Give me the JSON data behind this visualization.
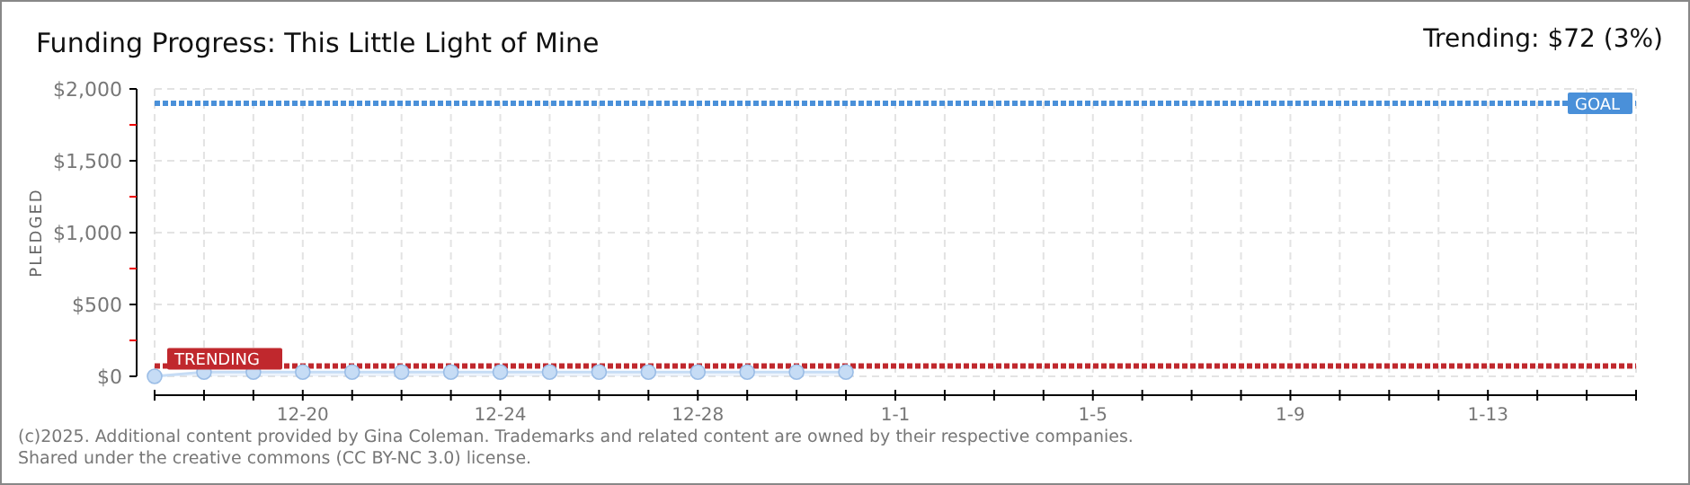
{
  "chart_data": {
    "type": "line",
    "title": "Funding Progress: This Little Light of Mine",
    "subtitle": "Trending: $72 (3%)",
    "ylabel": "PLEDGED",
    "categories": [
      null,
      null,
      null,
      "12-20",
      null,
      null,
      null,
      "12-24",
      null,
      null,
      null,
      "12-28",
      null,
      null,
      null,
      "1-1",
      null,
      null,
      null,
      "1-5",
      null,
      null,
      null,
      "1-9",
      null,
      null,
      null,
      "1-13",
      null,
      null,
      null
    ],
    "series": [
      {
        "color": "#c6dcf5",
        "values": [
          0,
          30,
          30,
          30,
          30,
          30,
          30,
          30,
          30,
          30,
          30,
          30,
          30,
          30,
          30,
          null,
          null,
          null,
          null,
          null,
          null,
          null,
          null,
          null,
          null,
          null,
          null,
          null,
          null,
          null,
          null
        ]
      }
    ],
    "ylim": [
      0,
      2000
    ],
    "yticks": [
      {
        "value": 0,
        "label": "$0"
      },
      {
        "value": 250,
        "label": null
      },
      {
        "value": 500,
        "label": "$500"
      },
      {
        "value": 750,
        "label": null
      },
      {
        "value": 1000,
        "label": "$1,000"
      },
      {
        "value": 1250,
        "label": null
      },
      {
        "value": 1500,
        "label": "$1,500"
      },
      {
        "value": 1750,
        "label": null
      },
      {
        "value": 2000,
        "label": "$2,000"
      }
    ],
    "ref_lines": [
      {
        "axis": "y",
        "value": 1900,
        "label": "GOAL",
        "color": "#4a90d9",
        "line_style": "dotted"
      },
      {
        "axis": "y",
        "value": 72,
        "label": "TRENDING",
        "color": "#c0282d",
        "line_style": "dotted"
      }
    ],
    "grid": true,
    "marker": "circle",
    "line_style": "solid",
    "annotations": [
      "(c)2025. Additional content provided by Gina Coleman. Trademarks and related content are owned by their respective companies.",
      "Shared under the creative commons (CC BY-NC 3.0) license."
    ]
  }
}
